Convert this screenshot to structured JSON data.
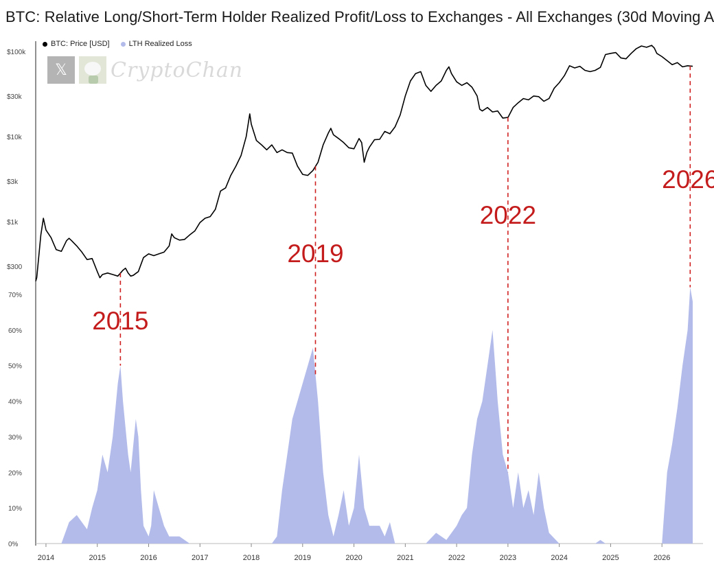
{
  "chart_data": {
    "type": "line",
    "title": "BTC: Relative Long/Short-Term Holder Realized Profit/Loss to Exchanges - All Exchanges (30d Moving A",
    "legend": {
      "placement": "top-left"
    },
    "watermark": {
      "text": "CryptoChan",
      "icons": [
        "x-logo-icon",
        "avatar-icon"
      ]
    },
    "x_axis": {
      "ticks": [
        "2014",
        "2015",
        "2016",
        "2017",
        "2018",
        "2019",
        "2020",
        "2021",
        "2022",
        "2023",
        "2024",
        "2025",
        "2026"
      ],
      "range": [
        2013.8,
        2026.8
      ]
    },
    "price_axis": {
      "scale": "log",
      "ticks": [
        {
          "label": "$100k",
          "value": 100000
        },
        {
          "label": "$30k",
          "value": 30000
        },
        {
          "label": "$10k",
          "value": 10000
        },
        {
          "label": "$3k",
          "value": 3000
        },
        {
          "label": "$1k",
          "value": 1000
        },
        {
          "label": "$300",
          "value": 300
        }
      ]
    },
    "loss_axis": {
      "ticks": [
        "0%",
        "10%",
        "20%",
        "30%",
        "40%",
        "50%",
        "60%",
        "70%"
      ],
      "range": [
        0,
        70
      ]
    },
    "series": [
      {
        "name": "BTC: Price [USD]",
        "color": "#000000",
        "points": [
          [
            2013.8,
            200
          ],
          [
            2013.82,
            220
          ],
          [
            2013.9,
            700
          ],
          [
            2013.95,
            1100
          ],
          [
            2014.0,
            800
          ],
          [
            2014.1,
            650
          ],
          [
            2014.15,
            550
          ],
          [
            2014.2,
            470
          ],
          [
            2014.3,
            450
          ],
          [
            2014.4,
            600
          ],
          [
            2014.45,
            640
          ],
          [
            2014.5,
            600
          ],
          [
            2014.6,
            520
          ],
          [
            2014.7,
            440
          ],
          [
            2014.8,
            360
          ],
          [
            2014.9,
            370
          ],
          [
            2015.0,
            260
          ],
          [
            2015.05,
            220
          ],
          [
            2015.1,
            240
          ],
          [
            2015.2,
            250
          ],
          [
            2015.3,
            240
          ],
          [
            2015.4,
            230
          ],
          [
            2015.5,
            270
          ],
          [
            2015.55,
            285
          ],
          [
            2015.6,
            250
          ],
          [
            2015.65,
            230
          ],
          [
            2015.7,
            235
          ],
          [
            2015.8,
            260
          ],
          [
            2015.9,
            380
          ],
          [
            2016.0,
            420
          ],
          [
            2016.1,
            400
          ],
          [
            2016.2,
            420
          ],
          [
            2016.3,
            440
          ],
          [
            2016.4,
            520
          ],
          [
            2016.45,
            720
          ],
          [
            2016.5,
            650
          ],
          [
            2016.6,
            610
          ],
          [
            2016.7,
            620
          ],
          [
            2016.8,
            700
          ],
          [
            2016.9,
            780
          ],
          [
            2017.0,
            980
          ],
          [
            2017.1,
            1100
          ],
          [
            2017.2,
            1150
          ],
          [
            2017.3,
            1400
          ],
          [
            2017.4,
            2300
          ],
          [
            2017.5,
            2500
          ],
          [
            2017.6,
            3500
          ],
          [
            2017.7,
            4500
          ],
          [
            2017.8,
            6000
          ],
          [
            2017.9,
            10000
          ],
          [
            2017.97,
            18500
          ],
          [
            2018.0,
            14000
          ],
          [
            2018.1,
            9000
          ],
          [
            2018.2,
            8000
          ],
          [
            2018.3,
            7000
          ],
          [
            2018.4,
            8000
          ],
          [
            2018.5,
            6500
          ],
          [
            2018.6,
            7000
          ],
          [
            2018.7,
            6500
          ],
          [
            2018.8,
            6400
          ],
          [
            2018.9,
            4500
          ],
          [
            2019.0,
            3600
          ],
          [
            2019.1,
            3500
          ],
          [
            2019.2,
            4000
          ],
          [
            2019.3,
            5000
          ],
          [
            2019.4,
            8000
          ],
          [
            2019.5,
            11000
          ],
          [
            2019.55,
            12500
          ],
          [
            2019.6,
            10500
          ],
          [
            2019.7,
            9500
          ],
          [
            2019.8,
            8500
          ],
          [
            2019.9,
            7400
          ],
          [
            2020.0,
            7200
          ],
          [
            2020.1,
            9500
          ],
          [
            2020.15,
            8500
          ],
          [
            2020.2,
            5000
          ],
          [
            2020.25,
            6500
          ],
          [
            2020.3,
            7500
          ],
          [
            2020.4,
            9200
          ],
          [
            2020.5,
            9300
          ],
          [
            2020.6,
            11500
          ],
          [
            2020.7,
            10800
          ],
          [
            2020.8,
            13000
          ],
          [
            2020.9,
            18000
          ],
          [
            2021.0,
            30000
          ],
          [
            2021.1,
            45000
          ],
          [
            2021.2,
            55000
          ],
          [
            2021.3,
            58000
          ],
          [
            2021.4,
            40000
          ],
          [
            2021.5,
            34000
          ],
          [
            2021.6,
            40000
          ],
          [
            2021.7,
            45000
          ],
          [
            2021.8,
            60000
          ],
          [
            2021.85,
            66000
          ],
          [
            2021.9,
            55000
          ],
          [
            2022.0,
            44000
          ],
          [
            2022.1,
            40000
          ],
          [
            2022.2,
            43000
          ],
          [
            2022.3,
            38000
          ],
          [
            2022.4,
            30000
          ],
          [
            2022.45,
            21000
          ],
          [
            2022.5,
            20000
          ],
          [
            2022.6,
            22000
          ],
          [
            2022.7,
            19500
          ],
          [
            2022.8,
            20000
          ],
          [
            2022.9,
            16500
          ],
          [
            2023.0,
            16800
          ],
          [
            2023.1,
            22000
          ],
          [
            2023.2,
            25000
          ],
          [
            2023.3,
            28000
          ],
          [
            2023.4,
            27000
          ],
          [
            2023.5,
            30000
          ],
          [
            2023.6,
            29500
          ],
          [
            2023.7,
            26000
          ],
          [
            2023.8,
            28000
          ],
          [
            2023.9,
            37000
          ],
          [
            2024.0,
            43000
          ],
          [
            2024.1,
            52000
          ],
          [
            2024.2,
            68000
          ],
          [
            2024.3,
            64000
          ],
          [
            2024.4,
            67000
          ],
          [
            2024.5,
            60000
          ],
          [
            2024.6,
            58000
          ],
          [
            2024.7,
            60000
          ],
          [
            2024.8,
            65000
          ],
          [
            2024.9,
            92000
          ],
          [
            2025.0,
            95000
          ],
          [
            2025.1,
            97000
          ],
          [
            2025.2,
            84000
          ],
          [
            2025.3,
            82000
          ],
          [
            2025.4,
            95000
          ],
          [
            2025.5,
            108000
          ],
          [
            2025.6,
            116000
          ],
          [
            2025.7,
            112000
          ],
          [
            2025.8,
            118000
          ],
          [
            2025.85,
            110000
          ],
          [
            2025.9,
            95000
          ],
          [
            2026.0,
            87000
          ],
          [
            2026.1,
            78000
          ],
          [
            2026.2,
            70000
          ],
          [
            2026.3,
            74000
          ],
          [
            2026.4,
            66000
          ],
          [
            2026.5,
            68000
          ],
          [
            2026.6,
            67000
          ]
        ]
      },
      {
        "name": "LTH Realized Loss",
        "color": "#b2bbea",
        "points": [
          [
            2014.3,
            0
          ],
          [
            2014.45,
            6
          ],
          [
            2014.6,
            8
          ],
          [
            2014.8,
            4
          ],
          [
            2014.9,
            10
          ],
          [
            2015.0,
            15
          ],
          [
            2015.1,
            25
          ],
          [
            2015.2,
            20
          ],
          [
            2015.3,
            30
          ],
          [
            2015.4,
            45
          ],
          [
            2015.45,
            50
          ],
          [
            2015.5,
            40
          ],
          [
            2015.6,
            25
          ],
          [
            2015.65,
            20
          ],
          [
            2015.75,
            35
          ],
          [
            2015.8,
            30
          ],
          [
            2015.85,
            15
          ],
          [
            2015.9,
            5
          ],
          [
            2016.0,
            2
          ],
          [
            2016.05,
            5
          ],
          [
            2016.1,
            15
          ],
          [
            2016.2,
            10
          ],
          [
            2016.3,
            5
          ],
          [
            2016.4,
            2
          ],
          [
            2016.6,
            2
          ],
          [
            2016.8,
            0
          ],
          [
            2018.4,
            0
          ],
          [
            2018.5,
            2
          ],
          [
            2018.6,
            15
          ],
          [
            2018.7,
            25
          ],
          [
            2018.8,
            35
          ],
          [
            2018.9,
            40
          ],
          [
            2019.0,
            45
          ],
          [
            2019.1,
            50
          ],
          [
            2019.2,
            55
          ],
          [
            2019.3,
            40
          ],
          [
            2019.4,
            20
          ],
          [
            2019.5,
            8
          ],
          [
            2019.6,
            2
          ],
          [
            2019.7,
            8
          ],
          [
            2019.8,
            15
          ],
          [
            2019.9,
            5
          ],
          [
            2020.0,
            10
          ],
          [
            2020.1,
            25
          ],
          [
            2020.2,
            10
          ],
          [
            2020.3,
            5
          ],
          [
            2020.5,
            5
          ],
          [
            2020.6,
            2
          ],
          [
            2020.7,
            6
          ],
          [
            2020.8,
            0
          ],
          [
            2021.4,
            0
          ],
          [
            2021.6,
            3
          ],
          [
            2021.8,
            1
          ],
          [
            2022.0,
            5
          ],
          [
            2022.1,
            8
          ],
          [
            2022.2,
            10
          ],
          [
            2022.3,
            25
          ],
          [
            2022.4,
            35
          ],
          [
            2022.5,
            40
          ],
          [
            2022.6,
            50
          ],
          [
            2022.65,
            55
          ],
          [
            2022.7,
            60
          ],
          [
            2022.75,
            50
          ],
          [
            2022.8,
            40
          ],
          [
            2022.9,
            25
          ],
          [
            2023.0,
            20
          ],
          [
            2023.1,
            10
          ],
          [
            2023.2,
            20
          ],
          [
            2023.3,
            10
          ],
          [
            2023.4,
            15
          ],
          [
            2023.5,
            8
          ],
          [
            2023.6,
            20
          ],
          [
            2023.7,
            10
          ],
          [
            2023.8,
            3
          ],
          [
            2024.0,
            0
          ],
          [
            2024.7,
            0
          ],
          [
            2024.8,
            1
          ],
          [
            2024.9,
            0
          ],
          [
            2026.0,
            0
          ],
          [
            2026.1,
            20
          ],
          [
            2026.2,
            28
          ],
          [
            2026.3,
            38
          ],
          [
            2026.4,
            50
          ],
          [
            2026.5,
            60
          ],
          [
            2026.55,
            72
          ],
          [
            2026.6,
            68
          ]
        ]
      }
    ],
    "annotations": [
      {
        "label": "2015",
        "x": 2015.45
      },
      {
        "label": "2019",
        "x": 2019.25
      },
      {
        "label": "2022",
        "x": 2023.0
      },
      {
        "label": "2026",
        "x": 2026.55
      }
    ],
    "annotation_color": "#d01f1f"
  }
}
